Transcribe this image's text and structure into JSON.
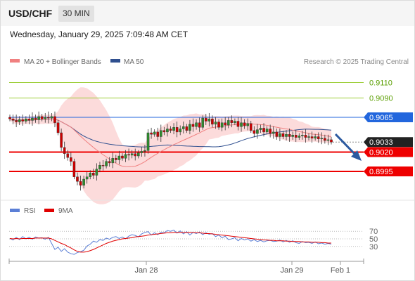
{
  "header": {
    "symbol": "USD/CHF",
    "timeframe": "30 MIN",
    "datetime": "Wednesday, January 29, 2025 7:09:48 AM CET"
  },
  "legend": {
    "ma20": {
      "label": "MA 20 + Bollinger Bands",
      "color": "#f08080"
    },
    "ma50": {
      "label": "MA 50",
      "color": "#2f4f8f"
    },
    "credit": "Research © 2025 Trading Central"
  },
  "rsi_legend": {
    "rsi": {
      "label": "RSI",
      "color": "#5b7fd6"
    },
    "ma9": {
      "label": "9MA",
      "color": "#e00000"
    }
  },
  "colors": {
    "up": "#2e8b2e",
    "down": "#cc0000",
    "resistance": "#2266dd",
    "support": "#ee0000",
    "target": "#9acd32"
  },
  "chart_data": [
    {
      "type": "candlestick",
      "title": "USD/CHF",
      "ylim": [
        0.8975,
        0.9125
      ],
      "levels": [
        {
          "value": 0.911,
          "label": "0.9110",
          "kind": "target"
        },
        {
          "value": 0.909,
          "label": "0.9090",
          "kind": "target"
        },
        {
          "value": 0.9065,
          "label": "0.9065",
          "kind": "resistance"
        },
        {
          "value": 0.9033,
          "label": "0.9033",
          "kind": "current"
        },
        {
          "value": 0.902,
          "label": "0.9020",
          "kind": "support"
        },
        {
          "value": 0.8995,
          "label": "0.8995",
          "kind": "support"
        }
      ],
      "x_labels": [
        "Jan 28",
        "Jan 29",
        "Feb 1"
      ],
      "forecast": "down",
      "close": [
        0.9063,
        0.9061,
        0.9059,
        0.9062,
        0.906,
        0.9063,
        0.9061,
        0.9064,
        0.9062,
        0.9066,
        0.9063,
        0.9065,
        0.9064,
        0.9066,
        0.9058,
        0.9045,
        0.9026,
        0.9018,
        0.9013,
        0.9008,
        0.8988,
        0.8982,
        0.8977,
        0.8985,
        0.8988,
        0.8993,
        0.899,
        0.8998,
        0.9003,
        0.9002,
        0.9008,
        0.9006,
        0.9012,
        0.901,
        0.9015,
        0.9012,
        0.9017,
        0.9016,
        0.9018,
        0.9015,
        0.9019,
        0.9021,
        0.9022,
        0.9045,
        0.9043,
        0.9046,
        0.904,
        0.9048,
        0.9046,
        0.905,
        0.9048,
        0.9052,
        0.9046,
        0.905,
        0.9053,
        0.9048,
        0.9056,
        0.9053,
        0.9058,
        0.9052,
        0.9064,
        0.906,
        0.9063,
        0.9056,
        0.9059,
        0.9052,
        0.9058,
        0.9055,
        0.9061,
        0.9058,
        0.906,
        0.9053,
        0.9058,
        0.9054,
        0.9057,
        0.9048,
        0.9044,
        0.9049,
        0.9051,
        0.9046,
        0.905,
        0.9044,
        0.9046,
        0.904,
        0.9044,
        0.904,
        0.9043,
        0.904,
        0.9042,
        0.9039,
        0.9041,
        0.9042,
        0.9039,
        0.904,
        0.9038,
        0.904,
        0.9037,
        0.9038,
        0.9035,
        0.9036,
        0.9033
      ]
    },
    {
      "type": "line",
      "title": "RSI",
      "ylim": [
        0,
        100
      ],
      "y_ticks": [
        70,
        50,
        30
      ],
      "series": [
        {
          "name": "RSI",
          "values": [
            51,
            47,
            54,
            48,
            56,
            50,
            54,
            49,
            55,
            52,
            53,
            49,
            54,
            38,
            22,
            28,
            17,
            24,
            15,
            11,
            9,
            14,
            16,
            20,
            31,
            36,
            44,
            41,
            48,
            46,
            52,
            49,
            54,
            56,
            51,
            55,
            50,
            57,
            61,
            59,
            55,
            63,
            67,
            69,
            60,
            66,
            61,
            67,
            66,
            72,
            70,
            73,
            65,
            71,
            63,
            69,
            60,
            67,
            64,
            68,
            61,
            66,
            62,
            64,
            56,
            60,
            53,
            57,
            48,
            50,
            53,
            45,
            51,
            47,
            50,
            44,
            48,
            43,
            46,
            42,
            45,
            46,
            43,
            44,
            47,
            42,
            46,
            41,
            45,
            40,
            38,
            43,
            40,
            41,
            38,
            42,
            37,
            39,
            36,
            38,
            36
          ]
        },
        {
          "name": "9MA",
          "values": [
            51,
            50,
            51,
            50,
            51,
            51,
            51,
            51,
            52,
            52,
            52,
            52,
            52,
            50,
            46,
            42,
            38,
            35,
            30,
            26,
            21,
            17,
            15,
            15,
            16,
            19,
            22,
            26,
            30,
            34,
            38,
            41,
            44,
            46,
            48,
            50,
            51,
            52,
            53,
            55,
            56,
            57,
            58,
            60,
            61,
            62,
            63,
            64,
            65,
            66,
            66,
            67,
            67,
            67,
            67,
            67,
            67,
            67,
            66,
            66,
            65,
            64,
            64,
            63,
            62,
            61,
            60,
            59,
            58,
            57,
            56,
            55,
            54,
            53,
            52,
            51,
            50,
            49,
            48,
            47,
            47,
            46,
            46,
            45,
            45,
            45,
            44,
            44,
            43,
            43,
            43,
            42,
            42,
            42,
            41,
            41,
            41,
            40,
            40,
            39,
            39
          ]
        }
      ]
    }
  ]
}
